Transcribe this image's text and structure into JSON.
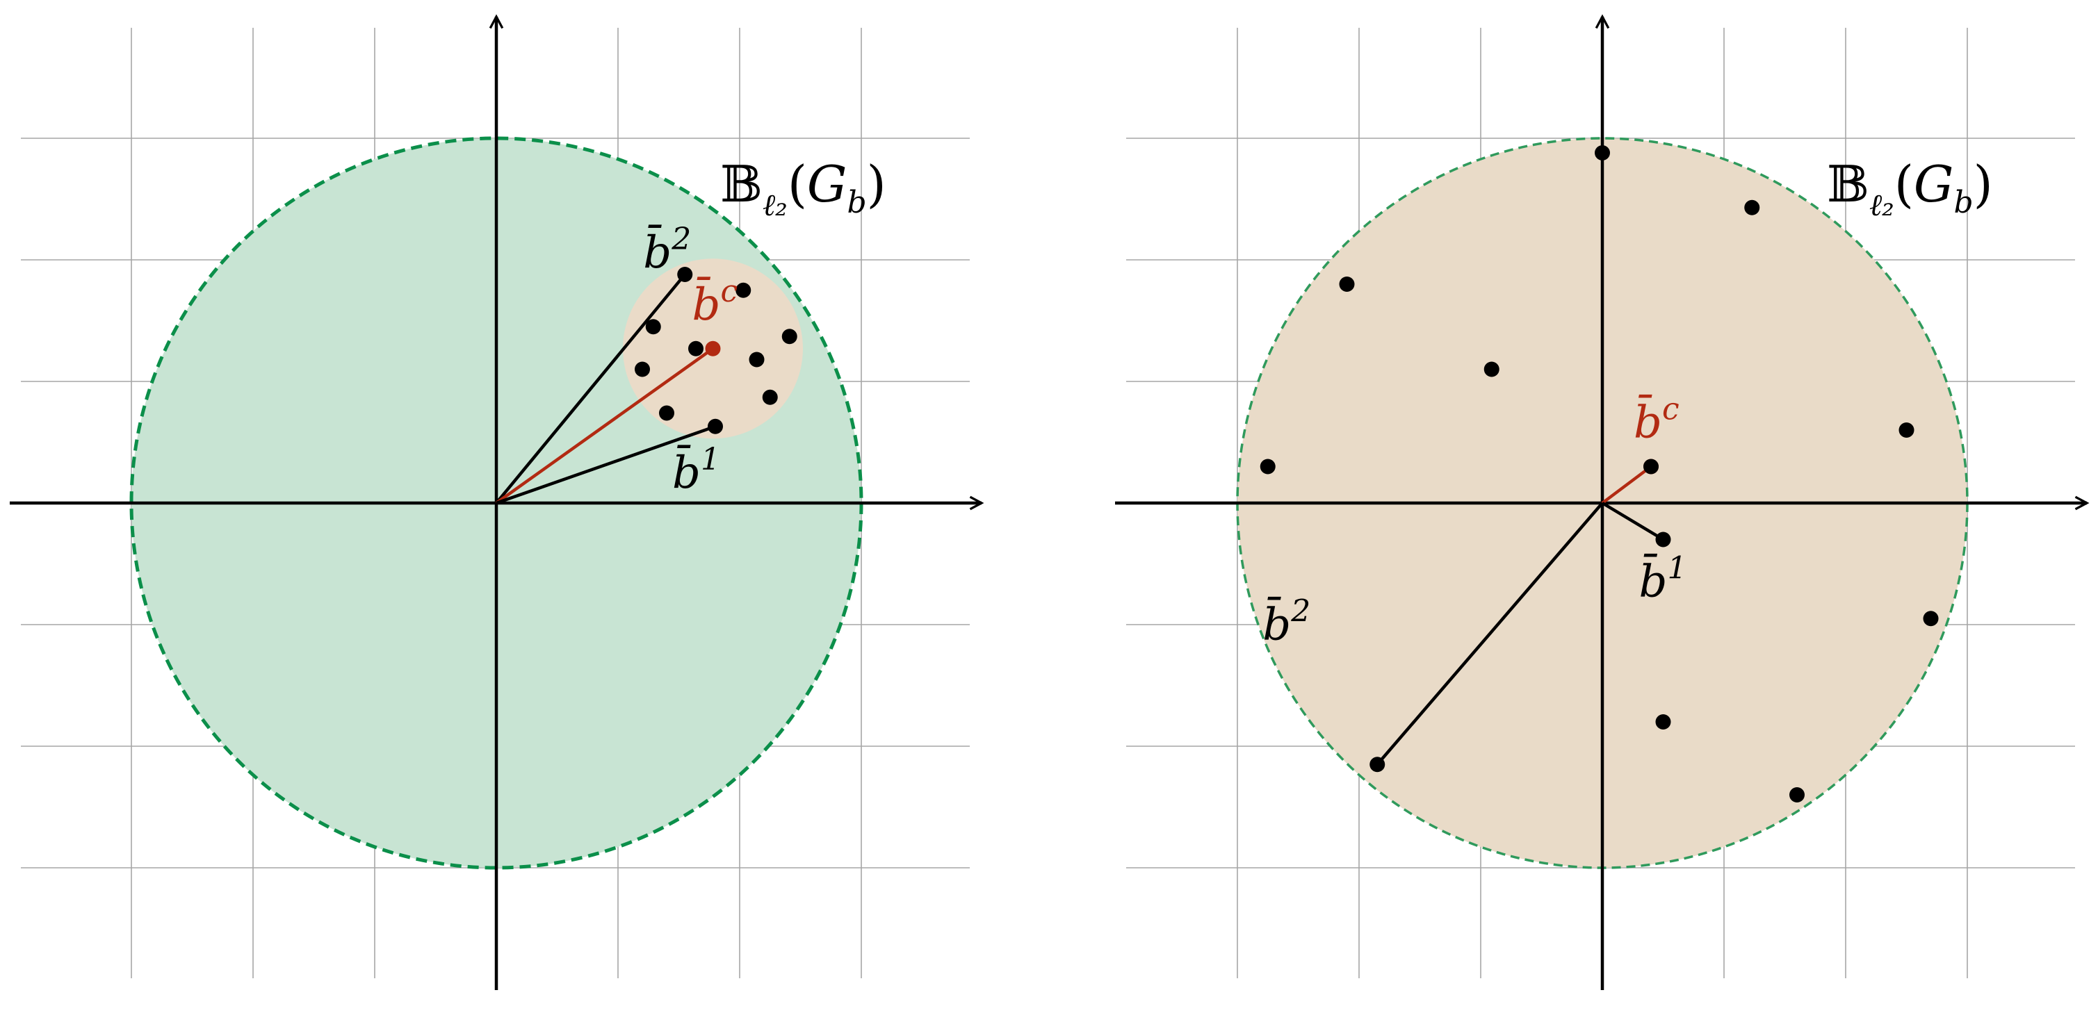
{
  "colors": {
    "grid": "#a6a6a6",
    "axis": "#000000",
    "point": "#000000",
    "center_vector": "#b22a12",
    "left_ball_fill": "#c8e4d3",
    "left_ball_stroke": "#0b8f4a",
    "cluster_fill": "#eadbc8",
    "right_ball_fill": "#e9dbc8",
    "right_ball_stroke": "#2f9a5c"
  },
  "panels": [
    {
      "id": "left",
      "ball_label": "𝔹ℓ₂(Gb)",
      "ball_label_parts": {
        "main": "𝔹",
        "sub": "ℓ₂",
        "arg_open": "(",
        "arg": "G",
        "arg_sub": "b",
        "arg_close": ")"
      },
      "ball_radius": 3,
      "cluster": {
        "center": [
          1.78,
          1.27
        ],
        "radius": 0.74
      },
      "points": [
        [
          1.55,
          1.88
        ],
        [
          2.03,
          1.75
        ],
        [
          1.29,
          1.45
        ],
        [
          1.64,
          1.27
        ],
        [
          2.41,
          1.37
        ],
        [
          2.14,
          1.18
        ],
        [
          1.2,
          1.1
        ],
        [
          2.25,
          0.87
        ],
        [
          1.4,
          0.74
        ],
        [
          1.8,
          0.63
        ]
      ],
      "vectors": [
        {
          "name": "b2",
          "label_base": "b̄",
          "label_sup": "2",
          "to": [
            1.55,
            1.88
          ],
          "color": "#000000"
        },
        {
          "name": "bc",
          "label_base": "b̄",
          "label_sup": "c",
          "to": [
            1.78,
            1.27
          ],
          "color": "#b22a12"
        },
        {
          "name": "b1",
          "label_base": "b̄",
          "label_sup": "1",
          "to": [
            1.8,
            0.63
          ],
          "color": "#000000"
        }
      ]
    },
    {
      "id": "right",
      "ball_label": "𝔹ℓ₂(Gb)",
      "ball_label_parts": {
        "main": "𝔹",
        "sub": "ℓ₂",
        "arg_open": "(",
        "arg": "G",
        "arg_sub": "b",
        "arg_close": ")"
      },
      "ball_radius": 3,
      "points": [
        [
          0.0,
          2.88
        ],
        [
          1.23,
          2.43
        ],
        [
          -2.1,
          1.8
        ],
        [
          -0.91,
          1.1
        ],
        [
          2.5,
          0.6
        ],
        [
          -2.75,
          0.3
        ],
        [
          0.4,
          0.3
        ],
        [
          0.5,
          -0.3
        ],
        [
          2.7,
          -0.95
        ],
        [
          0.5,
          -1.8
        ],
        [
          1.6,
          -2.4
        ],
        [
          -1.85,
          -2.15
        ]
      ],
      "vectors": [
        {
          "name": "bc",
          "label_base": "b̄",
          "label_sup": "c",
          "to": [
            0.4,
            0.3
          ],
          "color": "#b22a12"
        },
        {
          "name": "b1",
          "label_base": "b̄",
          "label_sup": "1",
          "to": [
            0.5,
            -0.3
          ],
          "color": "#000000"
        },
        {
          "name": "b2",
          "label_base": "b̄",
          "label_sup": "2",
          "to": [
            -1.85,
            -2.15
          ],
          "color": "#000000"
        }
      ]
    }
  ]
}
